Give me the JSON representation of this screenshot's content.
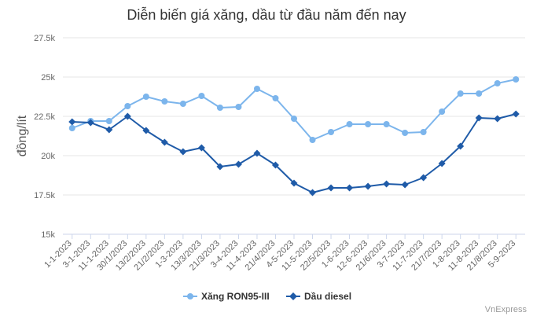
{
  "chart_data": {
    "type": "line",
    "title": "Diễn biến giá xăng, dầu từ đầu năm đến nay",
    "xlabel": "",
    "ylabel": "đồng/lít",
    "ylim": [
      15000,
      27500
    ],
    "yticks": [
      "15k",
      "17.5k",
      "20k",
      "22.5k",
      "25k",
      "27.5k"
    ],
    "ytick_values": [
      15000,
      17500,
      20000,
      22500,
      25000,
      27500
    ],
    "grid": true,
    "legend": "bottom-center",
    "categories": [
      "1-1-2023",
      "3-1-2023",
      "11-1-2023",
      "30/1/2023",
      "13/2/2023",
      "21/2/2023",
      "1-3-2023",
      "13/3/2023",
      "21/3/2023",
      "3-4-2023",
      "11-4-2023",
      "21/4/2023",
      "4-5-2023",
      "11-5-2023",
      "22/5/2023",
      "1-6-2023",
      "12-6-2023",
      "21/6/2023",
      "3-7-2023",
      "11-7-2023",
      "21/7/2023",
      "1-8-2023",
      "11-8-2023",
      "21/8/2023",
      "5-9-2023"
    ],
    "series": [
      {
        "name": "Xăng RON95-III",
        "color": "#7cb5ec",
        "marker": "circle",
        "values": [
          21750,
          22200,
          22200,
          23150,
          23750,
          23450,
          23300,
          23800,
          23050,
          23100,
          24250,
          23650,
          22350,
          21000,
          21500,
          22000,
          22000,
          22000,
          21450,
          21500,
          22800,
          23950,
          23950,
          24600,
          24850
        ]
      },
      {
        "name": "Dầu diesel",
        "color": "#1f5ba8",
        "marker": "diamond",
        "values": [
          22150,
          22100,
          21650,
          22500,
          21600,
          20850,
          20250,
          20500,
          19300,
          19450,
          20150,
          19400,
          18250,
          17650,
          17950,
          17950,
          18050,
          18200,
          18150,
          18600,
          19500,
          20600,
          22400,
          22350,
          22650
        ]
      }
    ]
  },
  "credit": "VnExpress"
}
